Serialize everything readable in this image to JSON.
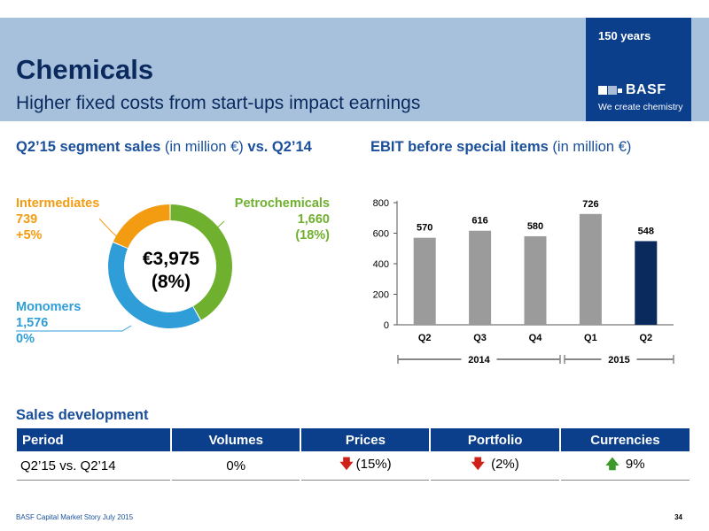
{
  "header": {
    "title": "Chemicals",
    "subtitle": "Higher fixed costs from start-ups impact earnings",
    "badge": "150 years",
    "logo_text": "BASF",
    "tagline": "We create chemistry",
    "bg_color": "#a7c1dd",
    "brand_color": "#0b3f8c"
  },
  "donut": {
    "title_bold": "Q2’15 segment sales",
    "title_unit": "(in million €)",
    "title_bold2": "vs. Q2’14",
    "center_value": "€3,975",
    "center_change": "(8%)",
    "segments": [
      {
        "name": "Intermediates",
        "value_label": "739",
        "change": "+5%",
        "color": "#f39c12"
      },
      {
        "name": "Petrochemicals",
        "value_label": "1,660",
        "change": "(18%)",
        "color": "#6fb02e"
      },
      {
        "name": "Monomers",
        "value_label": "1,576",
        "change": "0%",
        "color": "#2f9ed8"
      }
    ]
  },
  "ebit": {
    "title_bold": "EBIT before special items",
    "title_unit": "(in million €)",
    "year_labels": [
      "2014",
      "2015"
    ]
  },
  "chart_data": [
    {
      "type": "pie",
      "title": "Q2’15 segment sales (in million €) vs. Q2’14",
      "categories": [
        "Petrochemicals",
        "Monomers",
        "Intermediates"
      ],
      "values": [
        1660,
        1576,
        739
      ],
      "colors": [
        "#6fb02e",
        "#2f9ed8",
        "#f39c12"
      ],
      "total": "€3,975"
    },
    {
      "type": "bar",
      "title": "EBIT before special items (in million €)",
      "categories": [
        "Q2",
        "Q3",
        "Q4",
        "Q1",
        "Q2"
      ],
      "groups": [
        "2014",
        "2014",
        "2014",
        "2015",
        "2015"
      ],
      "values": [
        570,
        616,
        580,
        726,
        548
      ],
      "colors": [
        "#9b9b9b",
        "#9b9b9b",
        "#9b9b9b",
        "#9b9b9b",
        "#0a2a5e"
      ],
      "ylim": [
        0,
        800
      ],
      "yticks": [
        0,
        200,
        400,
        600,
        800
      ],
      "grid": false
    }
  ],
  "sales": {
    "title": "Sales development",
    "headers": [
      "Period",
      "Volumes",
      "Prices",
      "Portfolio",
      "Currencies"
    ],
    "row": {
      "period": "Q2’15 vs. Q2’14",
      "volumes": "0%",
      "prices": "(15%)",
      "portfolio": "(2%)",
      "currencies": "9%"
    }
  },
  "footer": {
    "text": "BASF Capital Market Story July 2015",
    "page": "34"
  }
}
